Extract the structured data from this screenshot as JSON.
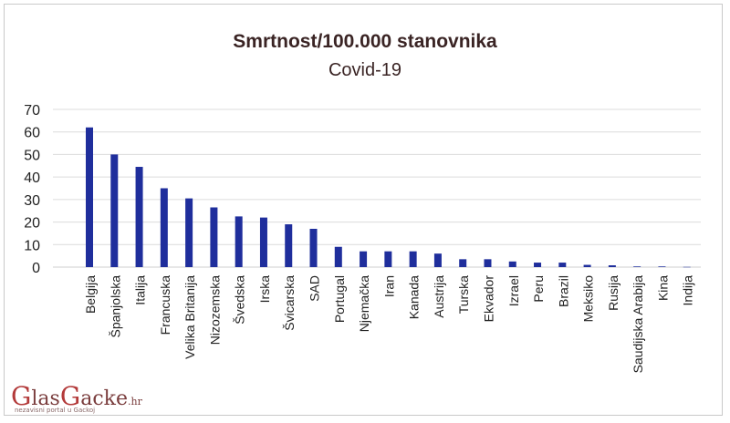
{
  "chart_data": {
    "type": "bar",
    "title": "Smrtnost/100.000 stanovnika",
    "subtitle": "Covid-19",
    "xlabel": "",
    "ylabel": "",
    "ylim": [
      0,
      70
    ],
    "yticks": [
      "0",
      "10",
      "20",
      "30",
      "40",
      "50",
      "60",
      "70"
    ],
    "grid": true,
    "bar_color": "#1f2e9c",
    "categories": [
      "Belgija",
      "Španjolska",
      "Italija",
      "Francuska",
      "Velika Britanija",
      "Nizozemska",
      "Švedska",
      "Irska",
      "Švicarska",
      "SAD",
      "Portugal",
      "Njemačka",
      "Iran",
      "Kanada",
      "Austrija",
      "Turska",
      "Ekvador",
      "Izrael",
      "Peru",
      "Brazil",
      "Meksiko",
      "Rusija",
      "Saudijska Arabija",
      "Kina",
      "Indija"
    ],
    "values": [
      62,
      50,
      44.5,
      35,
      30.5,
      26.5,
      22.5,
      22,
      19,
      17,
      9,
      7,
      7,
      7,
      6,
      3.5,
      3.5,
      2.5,
      2,
      2,
      1,
      0.8,
      0.3,
      0.3,
      0.1
    ]
  },
  "logo": {
    "brand_cap1": "G",
    "brand_part1": "las",
    "brand_cap2": "G",
    "brand_part2": "acke",
    "brand_suffix": ".hr",
    "tagline": "nezavisni portal u Gackoj"
  }
}
